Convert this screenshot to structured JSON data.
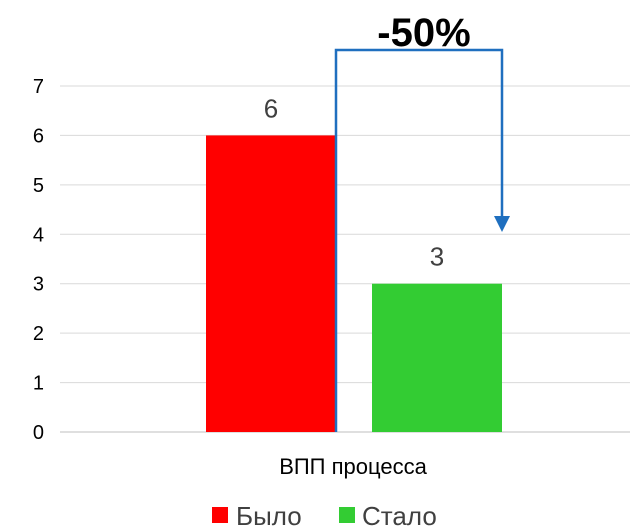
{
  "chart_data": {
    "type": "bar",
    "categories": [
      "ВПП процесса"
    ],
    "series": [
      {
        "name": "Было",
        "values": [
          6
        ],
        "color": "#ff0000"
      },
      {
        "name": "Стало",
        "values": [
          3
        ],
        "color": "#33cc33"
      }
    ],
    "data_labels": [
      "6",
      "3"
    ],
    "ylim": [
      0,
      7
    ],
    "yticks": [
      "0",
      "1",
      "2",
      "3",
      "4",
      "5",
      "6",
      "7"
    ],
    "grid": true,
    "legend": "bottom",
    "annotation": {
      "text": "-50%",
      "arrow_color": "#1f6fbf"
    }
  }
}
